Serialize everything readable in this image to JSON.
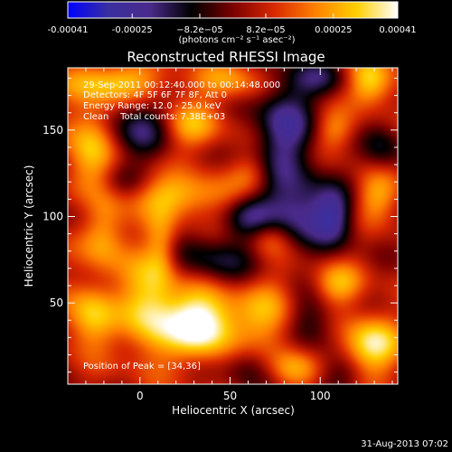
{
  "chart_data": {
    "type": "heatmap",
    "title": "Reconstructed RHESSI Image",
    "xlabel": "Heliocentric X (arcsec)",
    "ylabel": "Heliocentric Y (arcsec)",
    "xlim": [
      -40,
      143
    ],
    "ylim": [
      3,
      186
    ],
    "xticks": [
      0,
      50,
      100
    ],
    "yticks": [
      50,
      100,
      150
    ],
    "colorbar": {
      "range": [
        -0.00041,
        0.00041
      ],
      "tick_values": [
        -0.00041,
        -0.00025,
        -8.2e-05,
        8.2e-05,
        0.00025,
        0.00041
      ],
      "tick_labels": [
        "-0.00041",
        "-0.00025",
        "−8.2e−05",
        "8.2e−05",
        "0.00025",
        "0.00041"
      ],
      "unit_label": "(photons cm⁻² s⁻¹ asec⁻²)",
      "colors": [
        "#0000ff",
        "#3a2fa0",
        "#4a2a8a",
        "#000000",
        "#7a0000",
        "#d82800",
        "#ff8000",
        "#ffd000",
        "#ffffff"
      ]
    },
    "annotations": {
      "time": "29-Sep-2011 00:12:40.000 to 00:14:48.000",
      "detectors": "Detectors: 4F 5F 6F 7F 8F, Att 0",
      "energy": "Energy Range: 12.0 - 25.0 keV",
      "clean": "Clean    Total counts: 7.38E+03",
      "peak": "Position of Peak = [34,36]"
    },
    "peak": {
      "x": 34,
      "y": 36
    },
    "blobs": [
      {
        "x": 35,
        "y": 38,
        "sx": 14,
        "sy": 14,
        "a": 0.00043
      },
      {
        "x": 5,
        "y": 48,
        "sx": 11,
        "sy": 22,
        "a": 0.0003
      },
      {
        "x": -28,
        "y": 42,
        "sx": 10,
        "sy": 14,
        "a": 0.00026
      },
      {
        "x": -20,
        "y": 88,
        "sx": 9,
        "sy": 14,
        "a": 0.00022
      },
      {
        "x": 22,
        "y": 112,
        "sx": 22,
        "sy": 9,
        "a": 0.00024
      },
      {
        "x": -28,
        "y": 140,
        "sx": 10,
        "sy": 22,
        "a": 0.00026
      },
      {
        "x": -12,
        "y": 178,
        "sx": 20,
        "sy": 8,
        "a": 0.00024
      },
      {
        "x": 28,
        "y": 152,
        "sx": 12,
        "sy": 10,
        "a": 0.00022
      },
      {
        "x": 50,
        "y": 178,
        "sx": 14,
        "sy": 8,
        "a": 0.00018
      },
      {
        "x": 128,
        "y": 178,
        "sx": 9,
        "sy": 10,
        "a": 0.0003
      },
      {
        "x": 132,
        "y": 112,
        "sx": 9,
        "sy": 10,
        "a": 0.0002
      },
      {
        "x": 108,
        "y": 150,
        "sx": 8,
        "sy": 8,
        "a": 0.00016
      },
      {
        "x": 110,
        "y": 60,
        "sx": 10,
        "sy": 9,
        "a": 0.00022
      },
      {
        "x": 128,
        "y": 25,
        "sx": 12,
        "sy": 12,
        "a": 0.00032
      },
      {
        "x": 72,
        "y": 88,
        "sx": 9,
        "sy": 8,
        "a": 0.00018
      },
      {
        "x": 62,
        "y": 125,
        "sx": 8,
        "sy": 8,
        "a": 0.00012
      },
      {
        "x": 72,
        "y": 40,
        "sx": 12,
        "sy": 18,
        "a": 0.0002
      },
      {
        "x": 85,
        "y": 12,
        "sx": 10,
        "sy": 8,
        "a": 0.00015
      },
      {
        "x": 12,
        "y": 82,
        "sx": 6,
        "sy": 14,
        "a": 0.00016
      },
      {
        "x": 80,
        "y": 150,
        "sx": 12,
        "sy": 22,
        "a": -0.00028
      },
      {
        "x": 88,
        "y": 102,
        "sx": 14,
        "sy": 14,
        "a": -0.00028
      },
      {
        "x": 108,
        "y": 100,
        "sx": 8,
        "sy": 12,
        "a": -0.00022
      },
      {
        "x": 0,
        "y": 150,
        "sx": 14,
        "sy": 12,
        "a": -0.00022
      },
      {
        "x": 60,
        "y": 100,
        "sx": 10,
        "sy": 10,
        "a": -0.0002
      },
      {
        "x": 42,
        "y": 75,
        "sx": 18,
        "sy": 10,
        "a": -0.00018
      },
      {
        "x": 95,
        "y": 40,
        "sx": 10,
        "sy": 12,
        "a": -0.00018
      },
      {
        "x": 60,
        "y": 15,
        "sx": 10,
        "sy": 10,
        "a": -0.00015
      },
      {
        "x": 112,
        "y": 8,
        "sx": 10,
        "sy": 8,
        "a": -0.00012
      },
      {
        "x": -30,
        "y": 105,
        "sx": 8,
        "sy": 10,
        "a": -0.0001
      },
      {
        "x": 135,
        "y": 140,
        "sx": 8,
        "sy": 10,
        "a": -0.00015
      },
      {
        "x": 100,
        "y": 180,
        "sx": 12,
        "sy": 8,
        "a": -0.00016
      },
      {
        "x": -10,
        "y": 120,
        "sx": 10,
        "sy": 8,
        "a": -0.0001
      }
    ]
  },
  "footer": {
    "timestamp": "31-Aug-2013 07:02"
  }
}
